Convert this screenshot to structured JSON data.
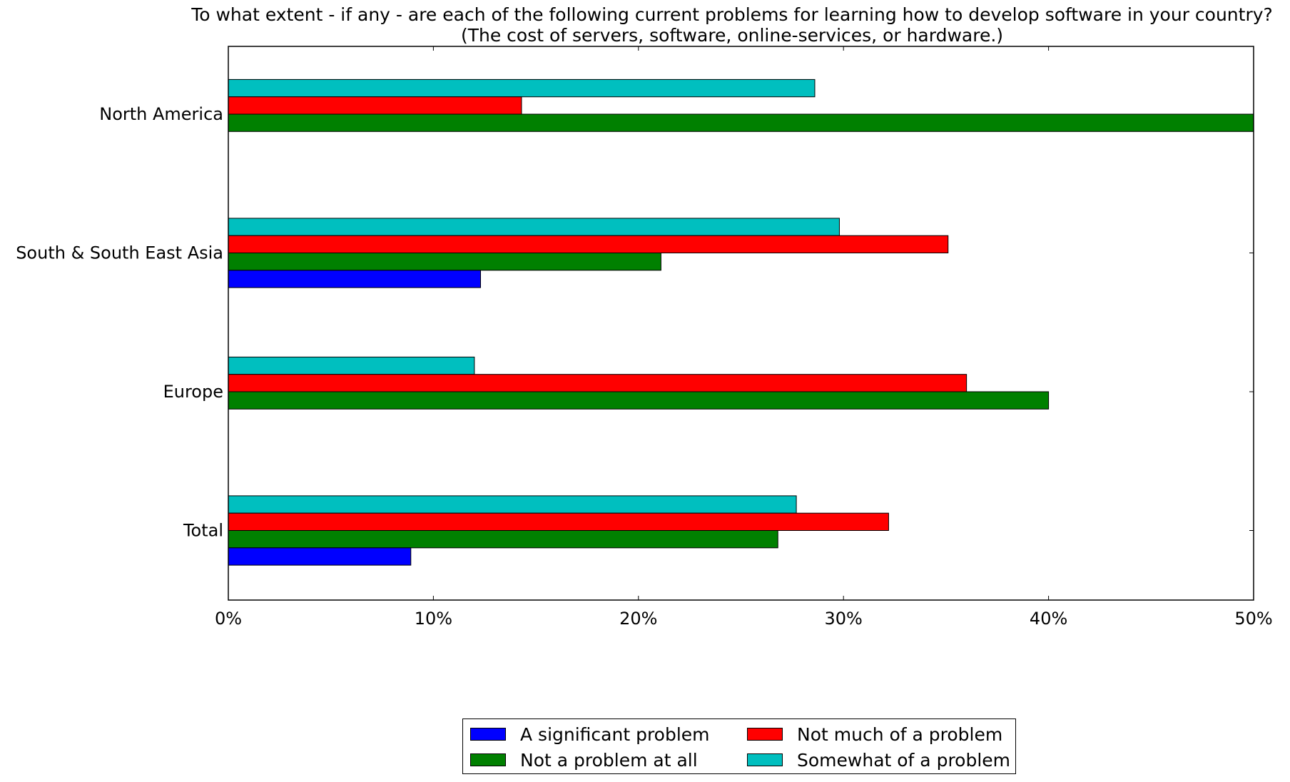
{
  "chart_data": {
    "type": "bar",
    "orientation": "horizontal",
    "title": "To what extent - if any - are each of the following current problems for learning how to develop software in your country?",
    "subtitle": "(The cost of servers, software, online-services, or hardware.)",
    "categories": [
      "North America",
      "South & South East Asia",
      "Europe",
      "Total"
    ],
    "series": [
      {
        "name": "A significant problem",
        "color": "#0000ff",
        "values": [
          0,
          12.3,
          0,
          8.9
        ]
      },
      {
        "name": "Not a problem at all",
        "color": "#008000",
        "values": [
          50.0,
          21.1,
          40.0,
          26.8
        ]
      },
      {
        "name": "Not much of a problem",
        "color": "#ff0000",
        "values": [
          14.3,
          35.1,
          36.0,
          32.2
        ]
      },
      {
        "name": "Somewhat of a problem",
        "color": "#00bfbf",
        "values": [
          28.6,
          29.8,
          12.0,
          27.7
        ]
      }
    ],
    "xlim": [
      0,
      50
    ],
    "x_ticks": [
      "0%",
      "10%",
      "20%",
      "30%",
      "40%",
      "50%"
    ],
    "x_unit": "%",
    "grid": false,
    "legend_position": "bottom-center"
  }
}
